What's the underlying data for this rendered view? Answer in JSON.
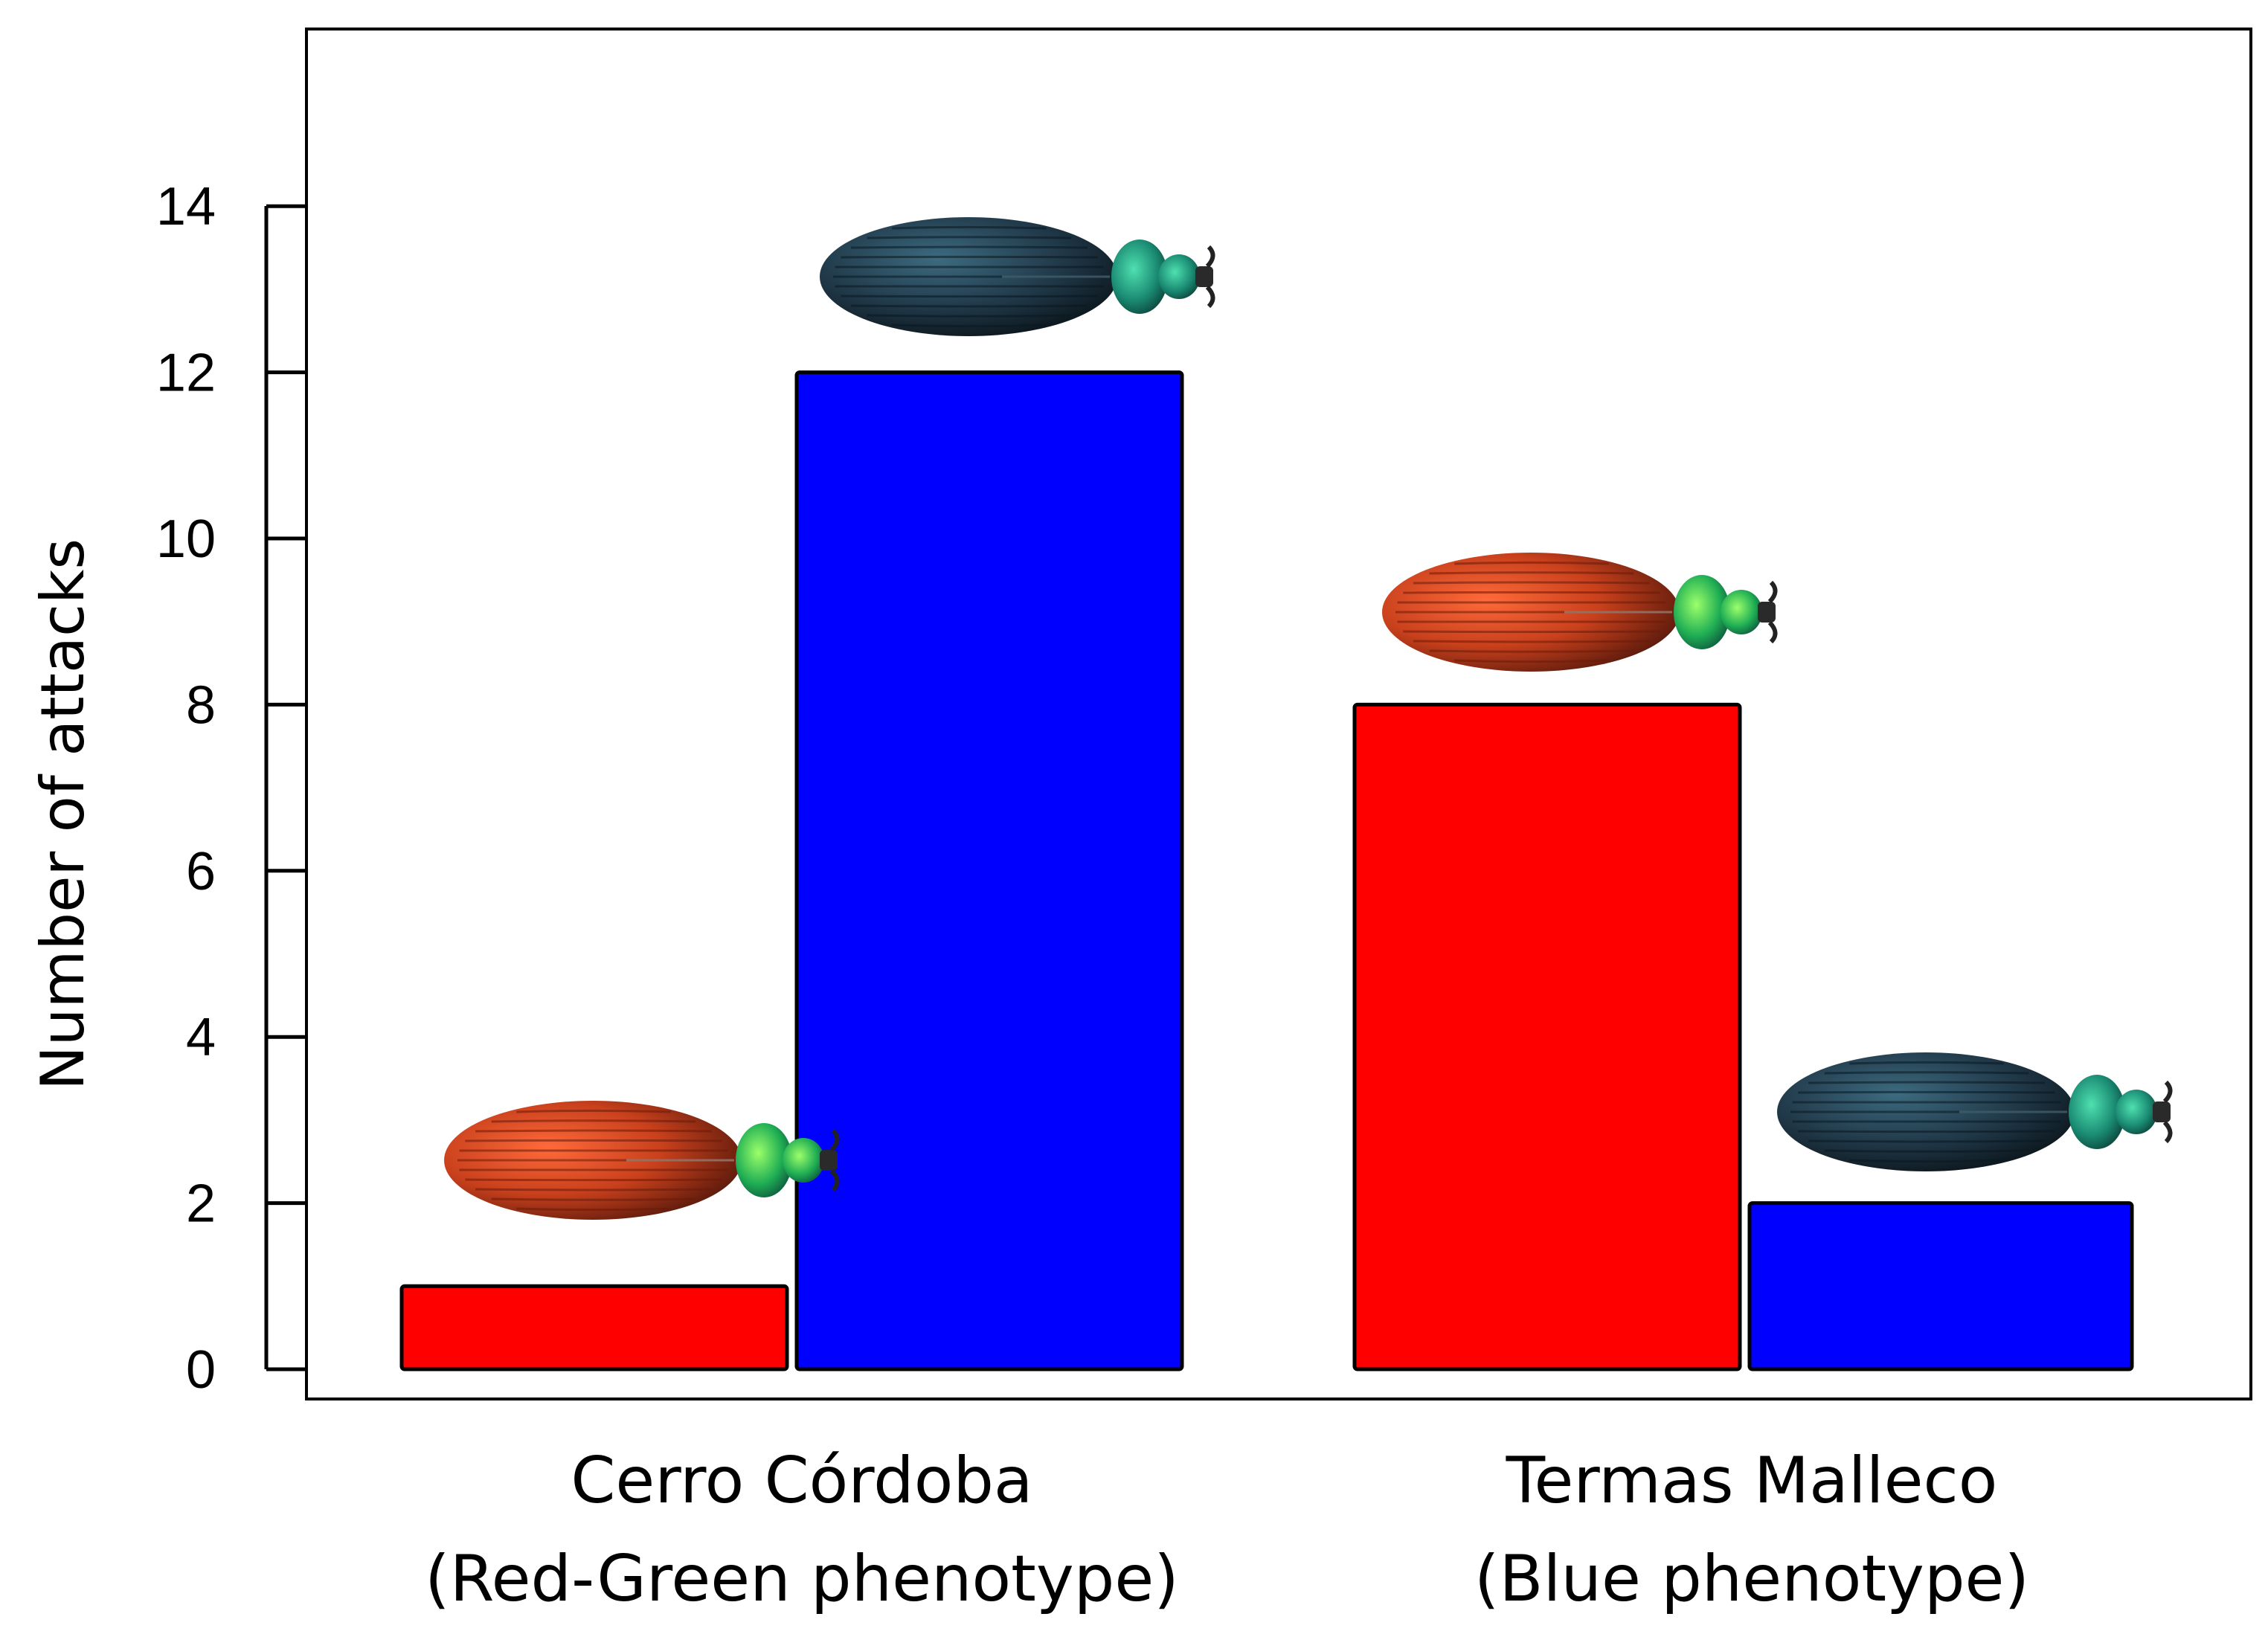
{
  "chart_data": {
    "type": "bar",
    "title": "",
    "xlabel": "",
    "ylabel": "Number of attacks",
    "ylim": [
      0,
      16.4
    ],
    "yticks": [
      0,
      2,
      4,
      6,
      8,
      10,
      12,
      14
    ],
    "grid": false,
    "legend": "none",
    "categories": [
      {
        "line1": "Cerro Córdoba",
        "line2": "(Red-Green phenotype)"
      },
      {
        "line1": "Termas Malleco",
        "line2": "(Blue phenotype)"
      }
    ],
    "series": [
      {
        "color": "#ff0000",
        "model_phenotype": "red-green-beetle",
        "values": [
          1,
          8
        ]
      },
      {
        "color": "#0000ff",
        "model_phenotype": "blue-beetle",
        "values": [
          12,
          2
        ]
      }
    ]
  }
}
